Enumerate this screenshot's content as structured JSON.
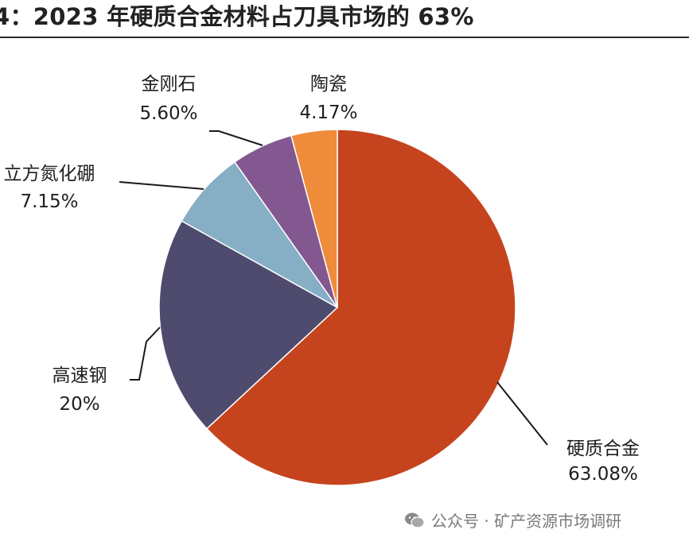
{
  "title": "4：2023 年硬质合金材料占刀具市场的 63%",
  "watermark": "公众号 · 矿产资源市场调研",
  "chart_data": {
    "type": "pie",
    "title": "4：2023 年硬质合金材料占刀具市场的 63%",
    "start": "12 o'clock",
    "direction": "clockwise",
    "slices": [
      {
        "label": "硬质合金",
        "value_label": "63.08%",
        "value": 63.08,
        "color": "#c5441e"
      },
      {
        "label": "高速钢",
        "value_label": "20%",
        "value": 20,
        "color": "#4e4b6e"
      },
      {
        "label": "立方氮化硼",
        "value_label": "7.15%",
        "value": 7.15,
        "color": "#86aec4"
      },
      {
        "label": "金刚石",
        "value_label": "5.60%",
        "value": 5.6,
        "color": "#83578f"
      },
      {
        "label": "陶瓷",
        "value_label": "4.17%",
        "value": 4.17,
        "color": "#ee8c3c"
      }
    ]
  }
}
